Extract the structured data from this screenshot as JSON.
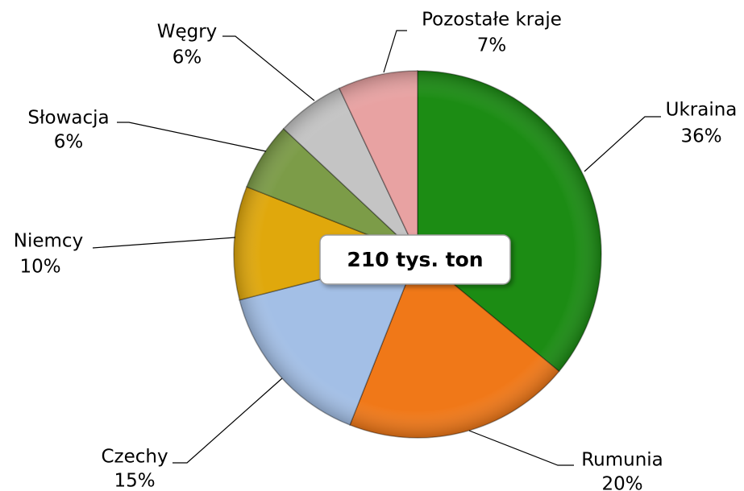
{
  "chart_data": {
    "type": "pie",
    "categories": [
      "Ukraina",
      "Rumunia",
      "Czechy",
      "Niemcy",
      "Słowacja",
      "Węgry",
      "Pozostałe kraje"
    ],
    "values": [
      36,
      20,
      15,
      10,
      6,
      6,
      7
    ],
    "value_labels": [
      "36%",
      "20%",
      "15%",
      "10%",
      "6%",
      "6%",
      "7%"
    ],
    "colors": [
      "#1c8c14",
      "#f07818",
      "#a3bfe6",
      "#e0a80c",
      "#7c9c48",
      "#c4c4c4",
      "#e8a2a2"
    ],
    "annotation": "210 tys. ton"
  }
}
